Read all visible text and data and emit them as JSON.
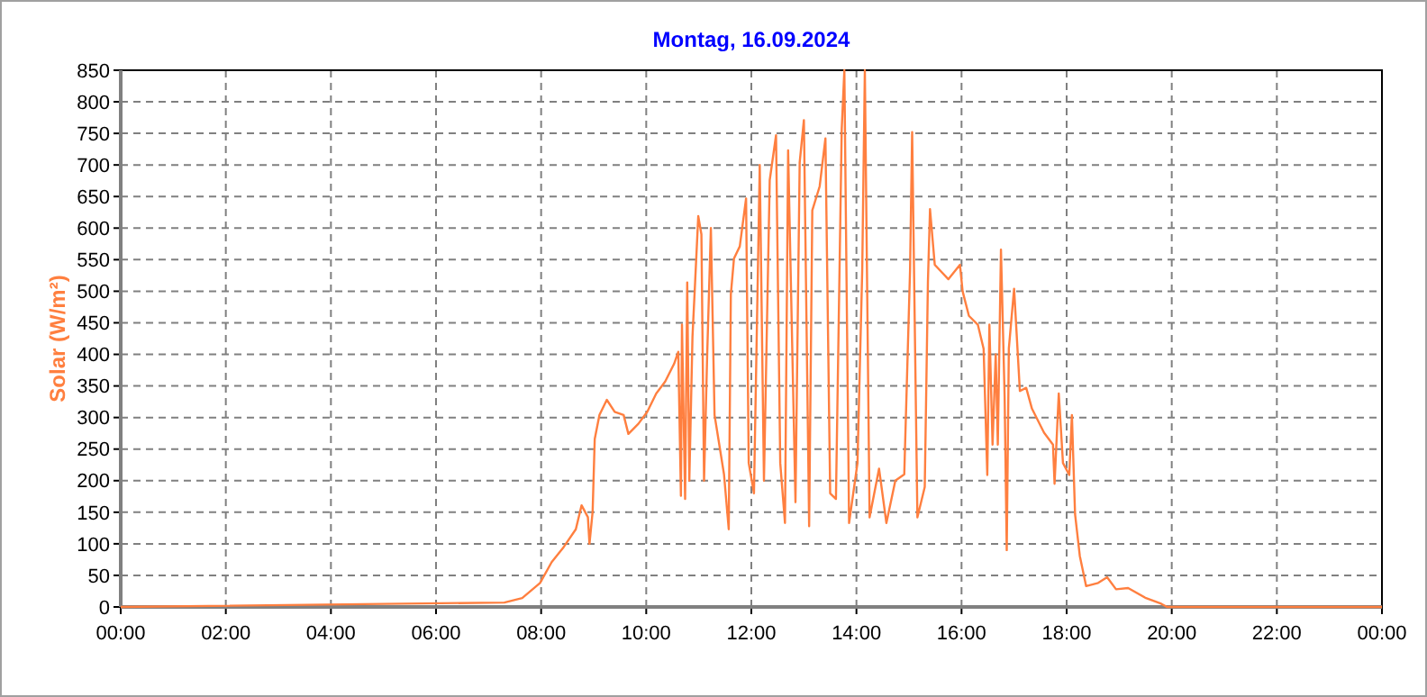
{
  "chart_data": {
    "type": "line",
    "title": "Montag, 16.09.2024",
    "ylabel": "Solar  (W/m²)",
    "xlim": [
      0,
      24
    ],
    "xticks": [
      {
        "value": 0,
        "label": "00:00"
      },
      {
        "value": 2,
        "label": "02:00"
      },
      {
        "value": 4,
        "label": "04:00"
      },
      {
        "value": 6,
        "label": "06:00"
      },
      {
        "value": 8,
        "label": "08:00"
      },
      {
        "value": 10,
        "label": "10:00"
      },
      {
        "value": 12,
        "label": "12:00"
      },
      {
        "value": 14,
        "label": "14:00"
      },
      {
        "value": 16,
        "label": "16:00"
      },
      {
        "value": 18,
        "label": "18:00"
      },
      {
        "value": 20,
        "label": "20:00"
      },
      {
        "value": 22,
        "label": "22:00"
      },
      {
        "value": 24,
        "label": "00:00"
      }
    ],
    "ylim": [
      0,
      850
    ],
    "yticks": [
      0,
      50,
      100,
      150,
      200,
      250,
      300,
      350,
      400,
      450,
      500,
      550,
      600,
      650,
      700,
      750,
      800,
      850
    ],
    "grid": true,
    "series": [
      {
        "color": "#ff7f3f",
        "x": [
          0,
          7.3,
          7.64,
          7.98,
          8.2,
          8.43,
          8.66,
          8.77,
          8.89,
          8.92,
          8.98,
          9.02,
          9.11,
          9.25,
          9.4,
          9.57,
          9.66,
          9.85,
          10.02,
          10.19,
          10.36,
          10.53,
          10.61,
          10.66,
          10.68,
          10.74,
          10.78,
          10.82,
          10.88,
          10.93,
          10.99,
          11.05,
          11.1,
          11.16,
          11.23,
          11.3,
          11.39,
          11.48,
          11.57,
          11.61,
          11.67,
          11.78,
          11.9,
          11.95,
          12.05,
          12.16,
          12.24,
          12.35,
          12.47,
          12.55,
          12.64,
          12.7,
          12.84,
          12.92,
          13.0,
          13.1,
          13.16,
          13.3,
          13.41,
          13.5,
          13.61,
          13.72,
          13.77,
          13.86,
          14.02,
          14.11,
          14.16,
          14.25,
          14.43,
          14.57,
          14.74,
          14.91,
          15.02,
          15.06,
          15.16,
          15.3,
          15.36,
          15.4,
          15.49,
          15.75,
          15.97,
          16.02,
          16.14,
          16.31,
          16.42,
          16.49,
          16.53,
          16.59,
          16.65,
          16.69,
          16.75,
          16.82,
          16.86,
          16.9,
          17.0,
          17.11,
          17.23,
          17.34,
          17.57,
          17.74,
          17.77,
          17.85,
          17.93,
          18.05,
          18.1,
          18.16,
          18.25,
          18.37,
          18.6,
          18.77,
          18.94,
          19.17,
          19.51,
          19.8,
          19.91,
          24
        ],
        "values": [
          0,
          7,
          14,
          38,
          71,
          95,
          123,
          161,
          142,
          100,
          151,
          266,
          304,
          328,
          309,
          304,
          274,
          290,
          309,
          338,
          357,
          385,
          404,
          176,
          447,
          171,
          514,
          200,
          428,
          514,
          619,
          590,
          200,
          400,
          600,
          304,
          257,
          210,
          123,
          495,
          552,
          571,
          647,
          228,
          180,
          700,
          200,
          676,
          747,
          228,
          133,
          723,
          166,
          704,
          771,
          128,
          628,
          666,
          742,
          180,
          171,
          757,
          850,
          133,
          228,
          533,
          850,
          142,
          219,
          133,
          200,
          210,
          533,
          752,
          142,
          190,
          514,
          630,
          542,
          519,
          542,
          500,
          461,
          447,
          409,
          209,
          447,
          257,
          400,
          257,
          566,
          333,
          90,
          409,
          504,
          342,
          347,
          314,
          276,
          257,
          195,
          338,
          228,
          209,
          304,
          147,
          81,
          33,
          38,
          47,
          28,
          30,
          14,
          5,
          0,
          0
        ]
      }
    ]
  }
}
